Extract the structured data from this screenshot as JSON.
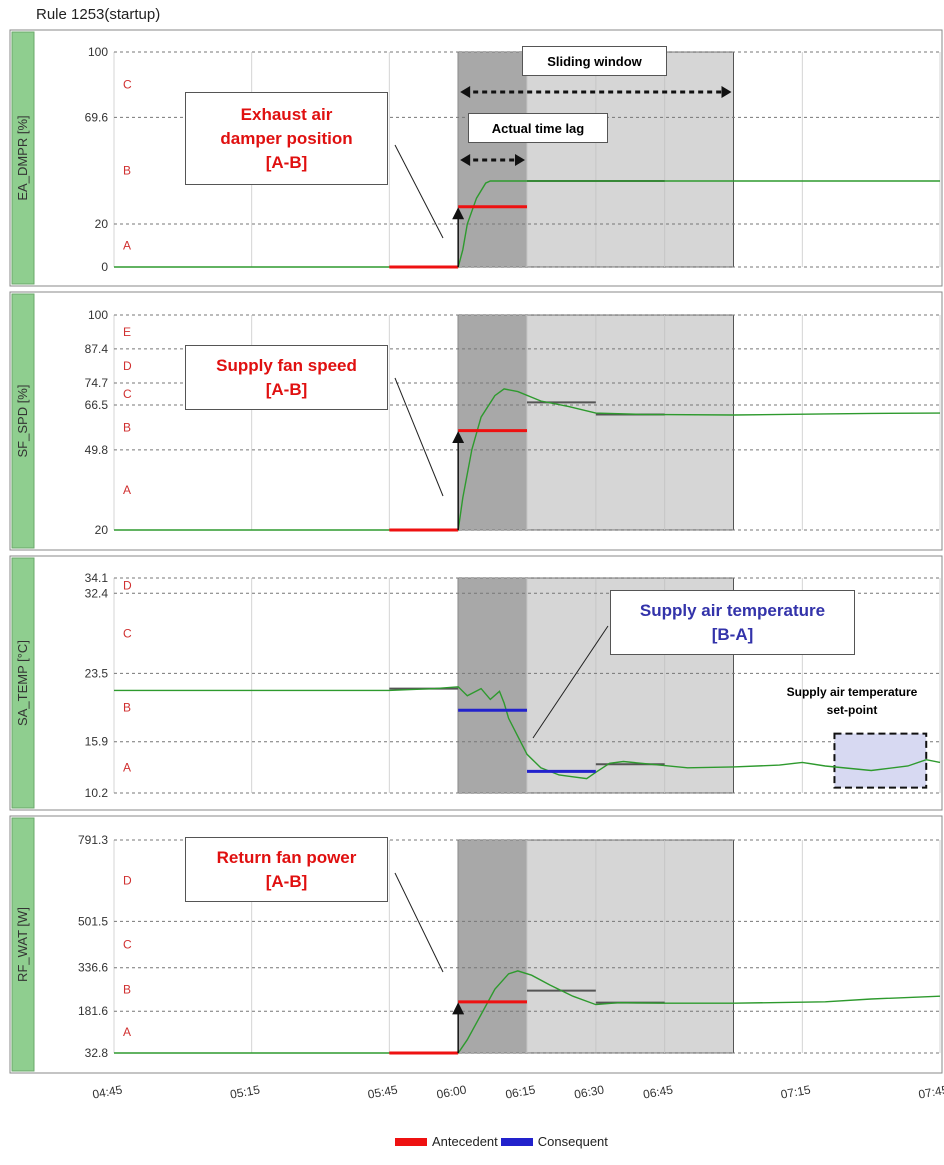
{
  "title": "Rule 1253(startup)",
  "colors": {
    "antecedent": "#ee1111",
    "consequent": "#2222cc",
    "signal": "#2e9a2e",
    "rule_step": "#555555",
    "panel_label_bg": "#8fce8f",
    "zone_label": "#d03030",
    "callout_red": "#e01010",
    "callout_blue": "#3333aa"
  },
  "chart_data": {
    "type": "line",
    "x_ticks": [
      "04:45",
      "05:15",
      "05:45",
      "06:00",
      "06:15",
      "06:30",
      "06:45",
      "07:15",
      "07:45"
    ],
    "x_range": [
      "04:45",
      "07:45"
    ],
    "sliding_window": {
      "start": "06:00",
      "end": "07:00",
      "label": "Sliding window"
    },
    "actual_time_lag": {
      "start": "06:00",
      "end": "06:15",
      "label": "Actual time lag"
    },
    "legend": [
      "Antecedent",
      "Consequent"
    ],
    "legend_position": "bottom-center",
    "grid": true,
    "panels": [
      {
        "ylabel": "EA_DMPR [%]",
        "y_ticks": [
          "0",
          "20",
          "69.6",
          "100"
        ],
        "ylim": [
          0,
          100
        ],
        "zones": [
          "A",
          "B",
          "C"
        ],
        "callout": [
          "Exhaust air",
          "damper position",
          "[A-B]"
        ],
        "antecedent": [
          {
            "from": "05:45",
            "to": "06:00",
            "y": 0
          },
          {
            "from": "06:00",
            "to": "06:15",
            "y": 28
          }
        ],
        "consequent": [],
        "steps": [
          {
            "from": "06:15",
            "to": "06:45",
            "y": 40
          }
        ],
        "signal": [
          [
            "04:45",
            0
          ],
          [
            "05:59",
            0
          ],
          [
            "06:00",
            0
          ],
          [
            "06:01",
            8
          ],
          [
            "06:02",
            20
          ],
          [
            "06:04",
            32
          ],
          [
            "06:06",
            39
          ],
          [
            "06:07",
            40
          ],
          [
            "06:30",
            40
          ],
          [
            "07:45",
            40
          ]
        ]
      },
      {
        "ylabel": "SF_SPD [%]",
        "y_ticks": [
          "20",
          "49.8",
          "66.5",
          "74.7",
          "87.4",
          "100"
        ],
        "ylim": [
          20,
          100
        ],
        "zones": [
          "A",
          "B",
          "C",
          "D",
          "E"
        ],
        "callout": [
          "Supply fan speed",
          "[A-B]"
        ],
        "antecedent": [
          {
            "from": "05:45",
            "to": "06:00",
            "y": 20
          },
          {
            "from": "06:00",
            "to": "06:15",
            "y": 57
          }
        ],
        "consequent": [],
        "steps": [
          {
            "from": "06:15",
            "to": "06:30",
            "y": 67.5
          },
          {
            "from": "06:30",
            "to": "06:45",
            "y": 63
          }
        ],
        "signal": [
          [
            "04:45",
            20
          ],
          [
            "05:59",
            20
          ],
          [
            "06:00",
            20
          ],
          [
            "06:01",
            32
          ],
          [
            "06:03",
            50
          ],
          [
            "06:05",
            62
          ],
          [
            "06:08",
            70
          ],
          [
            "06:10",
            72.5
          ],
          [
            "06:13",
            71.5
          ],
          [
            "06:18",
            68
          ],
          [
            "06:24",
            66
          ],
          [
            "06:30",
            63.5
          ],
          [
            "06:40",
            63
          ],
          [
            "07:00",
            62.8
          ],
          [
            "07:20",
            63.2
          ],
          [
            "07:30",
            63.4
          ],
          [
            "07:45",
            63.5
          ]
        ]
      },
      {
        "ylabel": "SA_TEMP [°C]",
        "y_ticks": [
          "10.2",
          "15.9",
          "23.5",
          "32.4",
          "34.1"
        ],
        "ylim": [
          10.2,
          34.1
        ],
        "zones": [
          "A",
          "B",
          "C",
          "D"
        ],
        "callout": [
          "Supply air temperature",
          "[B-A]"
        ],
        "setpoint_label": [
          "Supply air temperature",
          "set-point"
        ],
        "setpoint_region": {
          "from": "07:22",
          "to": "07:42",
          "ymin": 10.8,
          "ymax": 16.8
        },
        "antecedent": [],
        "consequent": [
          {
            "from": "06:00",
            "to": "06:15",
            "y": 19.4
          },
          {
            "from": "06:15",
            "to": "06:30",
            "y": 12.6
          }
        ],
        "steps": [
          {
            "from": "05:45",
            "to": "06:00",
            "y": 21.8
          },
          {
            "from": "06:30",
            "to": "06:45",
            "y": 13.4
          }
        ],
        "signal": [
          [
            "04:45",
            21.6
          ],
          [
            "05:45",
            21.6
          ],
          [
            "05:55",
            21.8
          ],
          [
            "06:00",
            22.0
          ],
          [
            "06:02",
            21.0
          ],
          [
            "06:05",
            21.8
          ],
          [
            "06:07",
            20.6
          ],
          [
            "06:09",
            21.5
          ],
          [
            "06:10",
            20.2
          ],
          [
            "06:11",
            18.5
          ],
          [
            "06:13",
            16.5
          ],
          [
            "06:15",
            14.5
          ],
          [
            "06:18",
            13.0
          ],
          [
            "06:22",
            12.2
          ],
          [
            "06:25",
            12.0
          ],
          [
            "06:28",
            11.8
          ],
          [
            "06:30",
            12.5
          ],
          [
            "06:33",
            13.5
          ],
          [
            "06:36",
            13.7
          ],
          [
            "06:40",
            13.5
          ],
          [
            "06:50",
            13.0
          ],
          [
            "07:00",
            13.1
          ],
          [
            "07:10",
            13.3
          ],
          [
            "07:15",
            13.6
          ],
          [
            "07:20",
            13.2
          ],
          [
            "07:30",
            12.7
          ],
          [
            "07:38",
            13.2
          ],
          [
            "07:42",
            13.9
          ],
          [
            "07:45",
            13.6
          ]
        ]
      },
      {
        "ylabel": "RF_WAT [W]",
        "y_ticks": [
          "32.8",
          "181.6",
          "336.6",
          "501.5",
          "791.3"
        ],
        "ylim": [
          32.8,
          791.3
        ],
        "zones": [
          "A",
          "B",
          "C",
          "D"
        ],
        "callout": [
          "Return fan power",
          "[A-B]"
        ],
        "antecedent": [
          {
            "from": "05:45",
            "to": "06:00",
            "y": 32.8
          },
          {
            "from": "06:00",
            "to": "06:15",
            "y": 215
          }
        ],
        "consequent": [],
        "steps": [
          {
            "from": "06:15",
            "to": "06:30",
            "y": 255
          },
          {
            "from": "06:30",
            "to": "06:45",
            "y": 212
          }
        ],
        "signal": [
          [
            "04:45",
            32.8
          ],
          [
            "05:59",
            32.8
          ],
          [
            "06:00",
            32.8
          ],
          [
            "06:02",
            80
          ],
          [
            "06:05",
            170
          ],
          [
            "06:08",
            260
          ],
          [
            "06:11",
            315
          ],
          [
            "06:13",
            325
          ],
          [
            "06:16",
            310
          ],
          [
            "06:20",
            275
          ],
          [
            "06:25",
            235
          ],
          [
            "06:30",
            205
          ],
          [
            "06:35",
            212
          ],
          [
            "06:45",
            210
          ],
          [
            "07:00",
            210
          ],
          [
            "07:20",
            215
          ],
          [
            "07:30",
            225
          ],
          [
            "07:45",
            235
          ]
        ]
      }
    ]
  }
}
